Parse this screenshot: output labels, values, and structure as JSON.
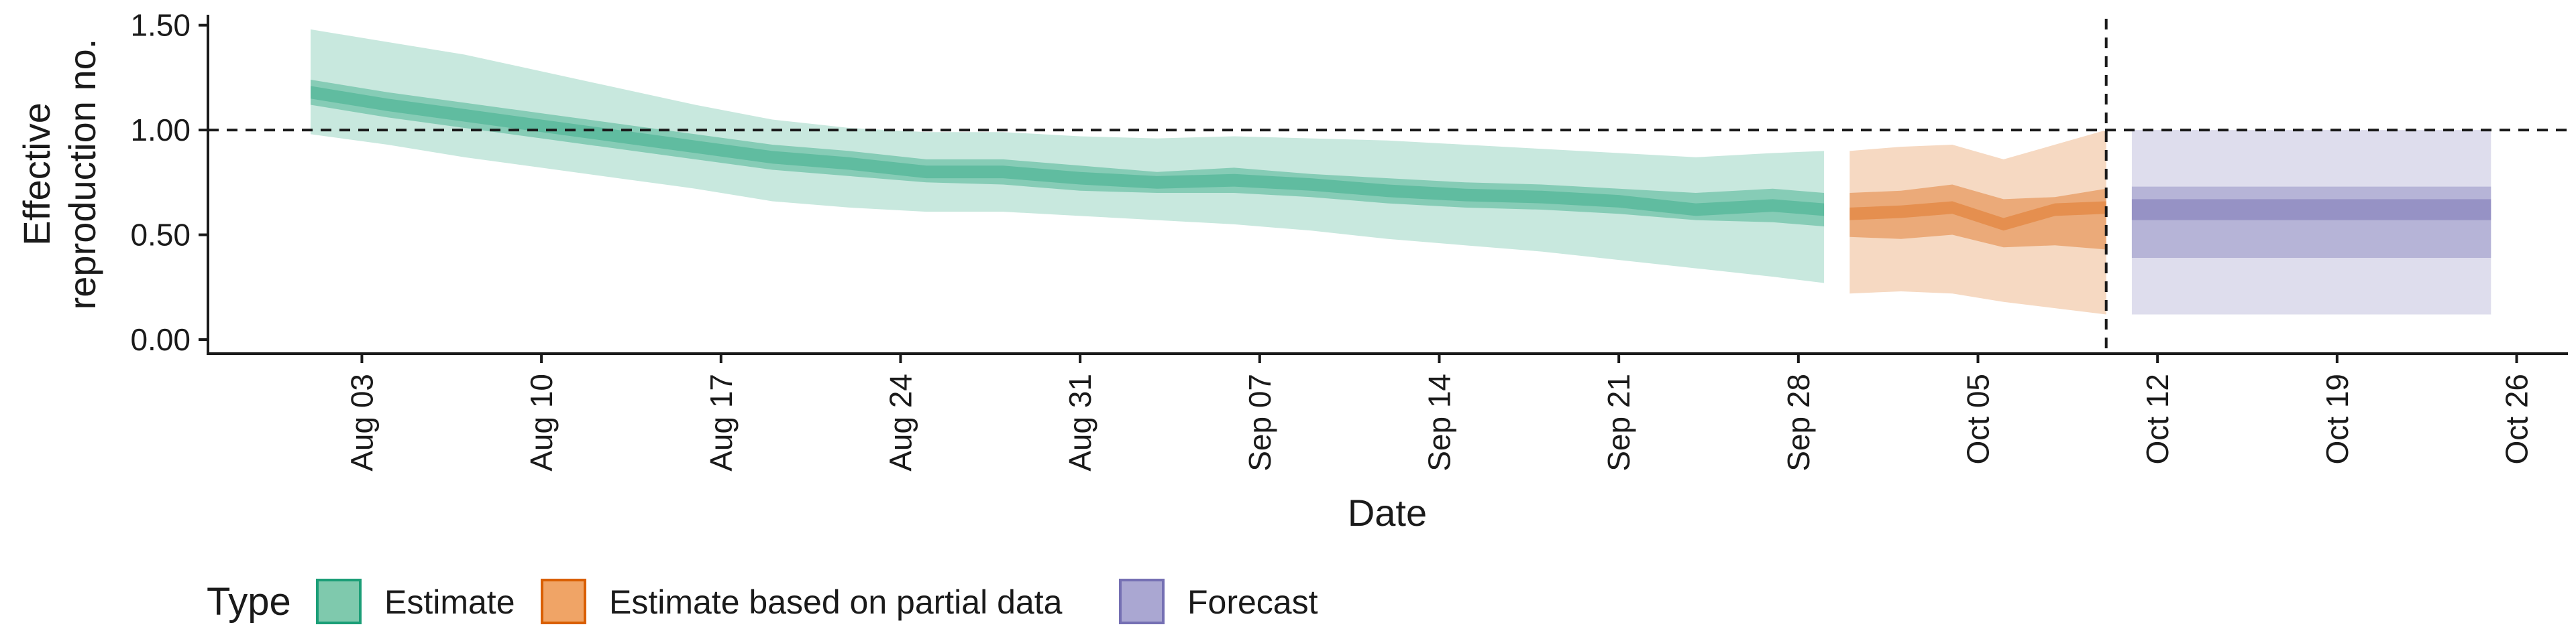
{
  "chart_data": {
    "type": "area",
    "title": "",
    "xlabel": "Date",
    "ylabel": [
      "Effective",
      "reproduction no."
    ],
    "x_type": "date",
    "xlim": [
      "2025-07-28",
      "2025-10-28"
    ],
    "ylim": [
      0,
      1.55
    ],
    "y_ticks": [
      0,
      0.5,
      1.0,
      1.5
    ],
    "y_tick_labels": [
      "0.00",
      "0.50",
      "1.00",
      "1.50"
    ],
    "x_ticks": [
      "2025-08-03",
      "2025-08-10",
      "2025-08-17",
      "2025-08-24",
      "2025-08-31",
      "2025-09-07",
      "2025-09-14",
      "2025-09-21",
      "2025-09-28",
      "2025-10-05",
      "2025-10-12",
      "2025-10-19",
      "2025-10-26"
    ],
    "x_tick_labels": [
      "Aug 03",
      "Aug 10",
      "Aug 17",
      "Aug 24",
      "Aug 31",
      "Sep 07",
      "Sep 14",
      "Sep 21",
      "Sep 28",
      "Oct 05",
      "Oct 12",
      "Oct 19",
      "Oct 26"
    ],
    "reference_line_y": 1.0,
    "reference_line_x": "2025-10-10",
    "grid": false,
    "legend": {
      "title": "Type",
      "position": "bottom",
      "entries": [
        {
          "label": "Estimate",
          "fill": "#7fc9ad",
          "stroke": "#1b9e77"
        },
        {
          "label": "Estimate based on partial data",
          "fill": "#f0a466",
          "stroke": "#d95f02"
        },
        {
          "label": "Forecast",
          "fill": "#aaa7d2",
          "stroke": "#7570b3"
        }
      ]
    },
    "series": [
      {
        "name": "Estimate",
        "color": "#1b9e77",
        "x": [
          "2025-08-01",
          "2025-08-04",
          "2025-08-07",
          "2025-08-10",
          "2025-08-13",
          "2025-08-16",
          "2025-08-19",
          "2025-08-22",
          "2025-08-25",
          "2025-08-28",
          "2025-08-31",
          "2025-09-03",
          "2025-09-06",
          "2025-09-09",
          "2025-09-12",
          "2025-09-15",
          "2025-09-18",
          "2025-09-21",
          "2025-09-24",
          "2025-09-27",
          "2025-09-29"
        ],
        "median": [
          1.18,
          1.12,
          1.07,
          1.02,
          0.97,
          0.92,
          0.87,
          0.84,
          0.8,
          0.8,
          0.77,
          0.75,
          0.76,
          0.74,
          0.71,
          0.69,
          0.68,
          0.66,
          0.62,
          0.64,
          0.62
        ],
        "lower_50": [
          1.12,
          1.06,
          1.01,
          0.96,
          0.91,
          0.86,
          0.81,
          0.78,
          0.75,
          0.74,
          0.71,
          0.7,
          0.7,
          0.68,
          0.65,
          0.63,
          0.62,
          0.6,
          0.57,
          0.56,
          0.54
        ],
        "upper_50": [
          1.24,
          1.18,
          1.13,
          1.08,
          1.03,
          0.98,
          0.93,
          0.9,
          0.86,
          0.86,
          0.83,
          0.8,
          0.82,
          0.79,
          0.77,
          0.75,
          0.74,
          0.72,
          0.7,
          0.72,
          0.7
        ],
        "lower_90": [
          0.98,
          0.93,
          0.87,
          0.82,
          0.77,
          0.72,
          0.66,
          0.63,
          0.61,
          0.61,
          0.59,
          0.57,
          0.55,
          0.52,
          0.48,
          0.45,
          0.42,
          0.38,
          0.34,
          0.3,
          0.27
        ],
        "upper_90": [
          1.48,
          1.42,
          1.36,
          1.28,
          1.2,
          1.12,
          1.05,
          1.01,
          0.99,
          0.99,
          0.97,
          0.96,
          0.97,
          0.96,
          0.95,
          0.93,
          0.91,
          0.89,
          0.87,
          0.89,
          0.9
        ]
      },
      {
        "name": "Estimate based on partial data",
        "color": "#d95f02",
        "x": [
          "2025-09-30",
          "2025-10-02",
          "2025-10-04",
          "2025-10-06",
          "2025-10-08",
          "2025-10-10"
        ],
        "median": [
          0.6,
          0.61,
          0.63,
          0.55,
          0.62,
          0.63
        ],
        "lower_50": [
          0.49,
          0.48,
          0.5,
          0.44,
          0.45,
          0.43
        ],
        "upper_50": [
          0.7,
          0.71,
          0.74,
          0.67,
          0.68,
          0.72
        ],
        "lower_90": [
          0.22,
          0.23,
          0.22,
          0.18,
          0.15,
          0.12
        ],
        "upper_90": [
          0.9,
          0.92,
          0.93,
          0.86,
          0.93,
          1.0
        ]
      },
      {
        "name": "Forecast",
        "color": "#7570b3",
        "x": [
          "2025-10-11",
          "2025-10-25"
        ],
        "median": [
          0.62,
          0.62
        ],
        "lower_50": [
          0.39,
          0.39
        ],
        "upper_50": [
          0.73,
          0.73
        ],
        "lower_90": [
          0.12,
          0.12
        ],
        "upper_90": [
          1.0,
          1.0
        ],
        "lower_20": [
          0.57,
          0.57
        ],
        "upper_20": [
          0.67,
          0.67
        ]
      }
    ]
  }
}
